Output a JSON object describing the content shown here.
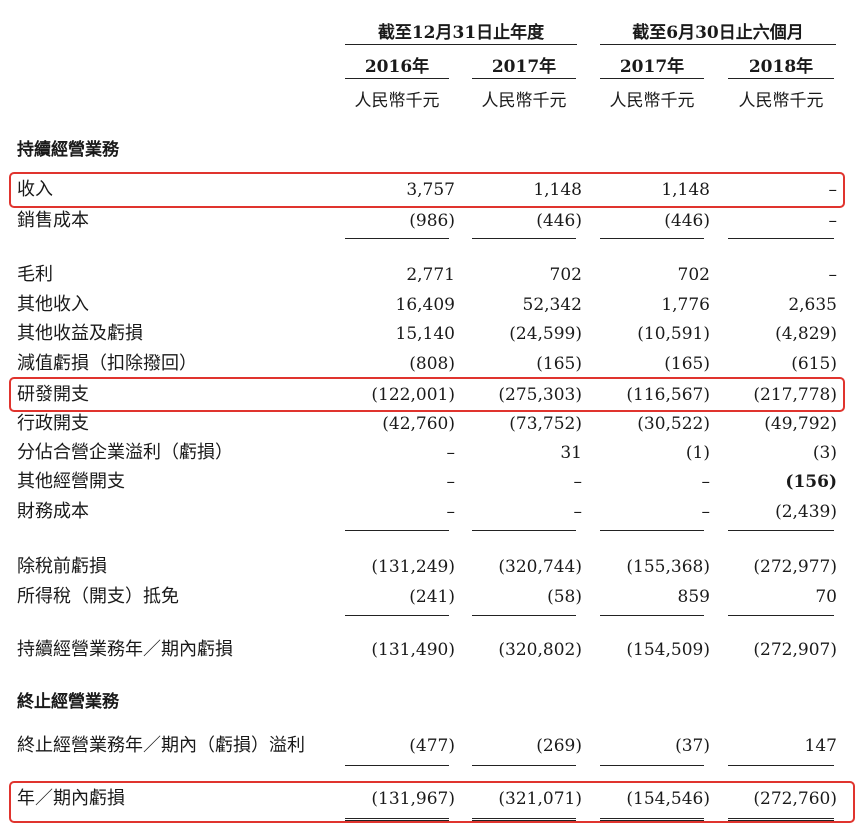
{
  "header": {
    "group_year": "截至12月31日止年度",
    "group_half": "截至6月30日止六個月",
    "years": [
      "2016年",
      "2017年",
      "2017年",
      "2018年"
    ],
    "unit": "人民幣千元"
  },
  "sections": {
    "continuing": "持續經營業務",
    "discontinued": "終止經營業務"
  },
  "rows": [
    {
      "label": "收入",
      "values": [
        "3,757",
        "1,148",
        "1,148",
        "–"
      ]
    },
    {
      "label": "銷售成本",
      "values": [
        "(986)",
        "(446)",
        "(446)",
        "–"
      ]
    },
    {
      "label": "毛利",
      "values": [
        "2,771",
        "702",
        "702",
        "–"
      ]
    },
    {
      "label": "其他收入",
      "values": [
        "16,409",
        "52,342",
        "1,776",
        "2,635"
      ]
    },
    {
      "label": "其他收益及虧損",
      "values": [
        "15,140",
        "(24,599)",
        "(10,591)",
        "(4,829)"
      ]
    },
    {
      "label": "減值虧損（扣除撥回）",
      "values": [
        "(808)",
        "(165)",
        "(165)",
        "(615)"
      ]
    },
    {
      "label": "研發開支",
      "values": [
        "(122,001)",
        "(275,303)",
        "(116,567)",
        "(217,778)"
      ]
    },
    {
      "label": "行政開支",
      "values": [
        "(42,760)",
        "(73,752)",
        "(30,522)",
        "(49,792)"
      ]
    },
    {
      "label": "分佔合營企業溢利（虧損）",
      "values": [
        "–",
        "31",
        "(1)",
        "(3)"
      ]
    },
    {
      "label": "其他經營開支",
      "values": [
        "–",
        "–",
        "–",
        "(156)"
      ]
    },
    {
      "label": "財務成本",
      "values": [
        "–",
        "–",
        "–",
        "(2,439)"
      ]
    },
    {
      "label": "除稅前虧損",
      "values": [
        "(131,249)",
        "(320,744)",
        "(155,368)",
        "(272,977)"
      ]
    },
    {
      "label": "所得稅（開支）抵免",
      "values": [
        "(241)",
        "(58)",
        "859",
        "70"
      ]
    },
    {
      "label": "持續經營業務年／期內虧損",
      "values": [
        "(131,490)",
        "(320,802)",
        "(154,509)",
        "(272,907)"
      ]
    },
    {
      "label": "終止經營業務年／期內（虧損）溢利",
      "values": [
        "(477)",
        "(269)",
        "(37)",
        "147"
      ]
    },
    {
      "label": "年／期內虧損",
      "values": [
        "(131,967)",
        "(321,071)",
        "(154,546)",
        "(272,760)"
      ]
    }
  ],
  "highlight_color": "#e0342e"
}
